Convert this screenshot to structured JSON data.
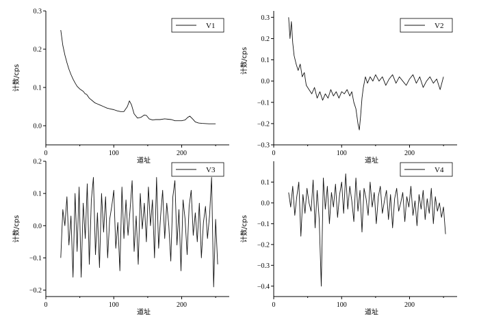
{
  "chart_data": [
    {
      "type": "line",
      "legend_location": "top-right",
      "xlabel": "道址",
      "ylabel": "计数/cps",
      "xlim": [
        0,
        270
      ],
      "ylim": [
        -0.05,
        0.3
      ],
      "xticks": [
        0,
        100,
        200
      ],
      "yticks": [
        0.0,
        0.1,
        0.2,
        0.3
      ],
      "ytick_labels": [
        "0.0",
        "0.1",
        "0.2",
        "0.3"
      ],
      "series": [
        {
          "name": "V1",
          "x": [
            22,
            25,
            28,
            31,
            34,
            37,
            40,
            43,
            46,
            50,
            55,
            58,
            60,
            64,
            68,
            72,
            76,
            80,
            85,
            90,
            95,
            100,
            105,
            110,
            115,
            120,
            123,
            126,
            130,
            135,
            140,
            145,
            148,
            152,
            157,
            162,
            168,
            175,
            180,
            185,
            190,
            195,
            200,
            205,
            209,
            212,
            216,
            220,
            225,
            230,
            240,
            250
          ],
          "y": [
            0.25,
            0.21,
            0.185,
            0.165,
            0.148,
            0.134,
            0.122,
            0.112,
            0.103,
            0.096,
            0.09,
            0.083,
            0.082,
            0.072,
            0.066,
            0.06,
            0.057,
            0.054,
            0.05,
            0.046,
            0.044,
            0.042,
            0.039,
            0.037,
            0.037,
            0.05,
            0.065,
            0.055,
            0.031,
            0.02,
            0.022,
            0.028,
            0.027,
            0.018,
            0.015,
            0.016,
            0.016,
            0.018,
            0.017,
            0.016,
            0.013,
            0.013,
            0.013,
            0.015,
            0.022,
            0.025,
            0.018,
            0.01,
            0.007,
            0.006,
            0.005,
            0.005
          ]
        }
      ]
    },
    {
      "type": "line",
      "legend_location": "top-right",
      "xlabel": "道址",
      "ylabel": "计数/cps",
      "xlim": [
        0,
        270
      ],
      "ylim": [
        -0.3,
        0.33
      ],
      "xticks": [
        0,
        100,
        200
      ],
      "yticks": [
        -0.3,
        -0.2,
        -0.1,
        0.0,
        0.1,
        0.2,
        0.3
      ],
      "ytick_labels": [
        "−0.3",
        "−0.2",
        "−0.1",
        "0.0",
        "0.1",
        "0.2",
        "0.3"
      ],
      "series": [
        {
          "name": "V2",
          "x": [
            22,
            24,
            26,
            28,
            30,
            33,
            36,
            39,
            42,
            45,
            48,
            52,
            56,
            60,
            64,
            68,
            72,
            76,
            80,
            84,
            88,
            92,
            96,
            100,
            104,
            108,
            112,
            115,
            118,
            121,
            124,
            126,
            128,
            130,
            132,
            135,
            138,
            142,
            146,
            150,
            155,
            160,
            165,
            170,
            175,
            180,
            185,
            190,
            195,
            200,
            205,
            210,
            215,
            220,
            225,
            230,
            235,
            240,
            245,
            250
          ],
          "y": [
            0.3,
            0.2,
            0.28,
            0.18,
            0.12,
            0.08,
            0.05,
            0.08,
            0.02,
            0.04,
            -0.02,
            -0.04,
            -0.06,
            -0.03,
            -0.08,
            -0.05,
            -0.09,
            -0.06,
            -0.08,
            -0.04,
            -0.07,
            -0.05,
            -0.08,
            -0.05,
            -0.06,
            -0.04,
            -0.07,
            -0.05,
            -0.1,
            -0.13,
            -0.2,
            -0.23,
            -0.16,
            -0.08,
            -0.03,
            0.02,
            -0.01,
            0.02,
            0.0,
            0.03,
            0.0,
            0.02,
            -0.02,
            0.01,
            0.03,
            -0.01,
            0.02,
            0.0,
            -0.02,
            0.01,
            0.03,
            -0.01,
            0.02,
            -0.03,
            0.0,
            0.02,
            -0.01,
            0.01,
            -0.04,
            0.02
          ]
        }
      ]
    },
    {
      "type": "line",
      "legend_location": "top-right",
      "xlabel": "道址",
      "ylabel": "计数/cps",
      "xlim": [
        0,
        270
      ],
      "ylim": [
        -0.22,
        0.2
      ],
      "xticks": [
        0,
        100,
        200
      ],
      "yticks": [
        -0.2,
        -0.1,
        0.0,
        0.1,
        0.2
      ],
      "ytick_labels": [
        "−0.2",
        "−0.1",
        "0.0",
        "0.1",
        "0.2"
      ],
      "series": [
        {
          "name": "V3",
          "x": [
            22,
            25,
            28,
            31,
            34,
            37,
            40,
            43,
            46,
            49,
            52,
            55,
            58,
            61,
            64,
            67,
            70,
            73,
            76,
            79,
            82,
            85,
            88,
            91,
            94,
            97,
            100,
            103,
            106,
            109,
            112,
            115,
            118,
            121,
            124,
            127,
            130,
            133,
            136,
            139,
            142,
            145,
            148,
            151,
            154,
            157,
            160,
            163,
            166,
            169,
            172,
            175,
            178,
            181,
            184,
            187,
            190,
            193,
            196,
            199,
            202,
            205,
            208,
            211,
            214,
            217,
            220,
            223,
            226,
            229,
            232,
            235,
            238,
            241,
            244,
            247,
            250,
            253
          ],
          "y": [
            -0.1,
            0.05,
            0.0,
            0.09,
            -0.06,
            0.03,
            -0.16,
            0.1,
            -0.08,
            0.12,
            -0.16,
            0.07,
            -0.04,
            0.13,
            -0.12,
            0.08,
            0.15,
            -0.09,
            0.04,
            -0.13,
            0.1,
            -0.02,
            0.09,
            -0.1,
            0.02,
            0.06,
            0.11,
            -0.07,
            0.01,
            -0.14,
            0.12,
            -0.04,
            0.08,
            -0.03,
            0.05,
            0.14,
            -0.08,
            0.03,
            -0.12,
            0.1,
            -0.01,
            0.07,
            -0.05,
            0.12,
            0.0,
            0.08,
            -0.1,
            0.15,
            -0.07,
            0.03,
            0.11,
            -0.04,
            0.07,
            0.0,
            -0.11,
            0.09,
            0.14,
            -0.06,
            0.05,
            -0.14,
            0.08,
            0.02,
            -0.09,
            0.06,
            0.11,
            -0.03,
            0.04,
            -0.05,
            0.07,
            -0.1,
            0.01,
            0.06,
            -0.04,
            0.03,
            0.15,
            -0.19,
            0.02,
            -0.12
          ]
        }
      ]
    },
    {
      "type": "line",
      "legend_location": "top-right",
      "xlabel": "道址",
      "ylabel": "计数/cps",
      "xlim": [
        0,
        270
      ],
      "ylim": [
        -0.45,
        0.2
      ],
      "xticks": [
        0,
        100,
        200
      ],
      "yticks": [
        -0.4,
        -0.3,
        -0.2,
        -0.1,
        0.0,
        0.1
      ],
      "ytick_labels": [
        "−0.4",
        "−0.3",
        "−0.2",
        "−0.1",
        "0.0",
        "0.1"
      ],
      "series": [
        {
          "name": "V4",
          "x": [
            22,
            25,
            28,
            31,
            34,
            37,
            40,
            43,
            46,
            49,
            52,
            55,
            58,
            61,
            64,
            67,
            70,
            73,
            76,
            79,
            82,
            85,
            88,
            91,
            94,
            97,
            100,
            103,
            106,
            109,
            112,
            115,
            118,
            121,
            124,
            127,
            130,
            133,
            136,
            139,
            142,
            145,
            148,
            151,
            154,
            157,
            160,
            163,
            166,
            169,
            172,
            175,
            178,
            181,
            184,
            187,
            190,
            193,
            196,
            199,
            202,
            205,
            208,
            211,
            214,
            217,
            220,
            223,
            226,
            229,
            232,
            235,
            238,
            241,
            244,
            247,
            250,
            253
          ],
          "y": [
            0.05,
            -0.02,
            0.08,
            -0.06,
            0.03,
            0.1,
            -0.16,
            0.04,
            -0.05,
            0.07,
            0.0,
            -0.04,
            0.11,
            -0.12,
            0.06,
            -0.08,
            -0.4,
            0.12,
            -0.03,
            0.08,
            -0.1,
            0.05,
            -0.02,
            0.09,
            -0.07,
            0.04,
            0.1,
            -0.05,
            0.14,
            -0.03,
            0.08,
            0.01,
            -0.09,
            0.12,
            -0.04,
            0.06,
            -0.14,
            0.07,
            0.02,
            -0.06,
            0.1,
            -0.02,
            0.05,
            -0.1,
            0.03,
            0.08,
            -0.05,
            0.01,
            0.06,
            -0.08,
            0.04,
            -0.12,
            0.02,
            0.07,
            -0.04,
            0.0,
            0.05,
            -0.09,
            0.03,
            -0.02,
            0.08,
            -0.06,
            0.01,
            -0.11,
            0.04,
            -0.03,
            0.06,
            -0.08,
            0.02,
            -0.05,
            0.07,
            -0.1,
            0.03,
            -0.04,
            0.0,
            -0.07,
            -0.02,
            -0.15
          ]
        }
      ]
    }
  ]
}
